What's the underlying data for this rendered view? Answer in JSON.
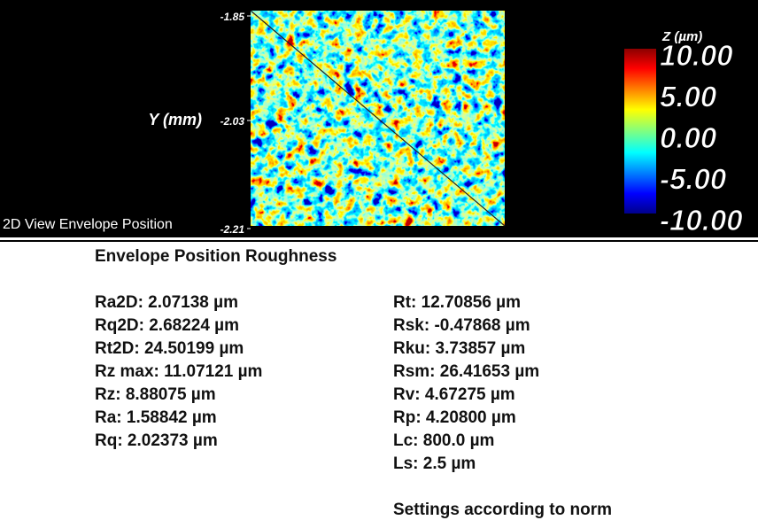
{
  "view": {
    "label": "2D View Envelope Position",
    "y_axis": {
      "label": "Y (mm)",
      "ticks": [
        "-1.85",
        "-2.03",
        "-2.21"
      ]
    },
    "colorbar": {
      "title": "Z (µm)",
      "ticks": [
        "10.00",
        "5.00",
        "0.00",
        "-5.00",
        "-10.00"
      ]
    }
  },
  "report": {
    "title": "Envelope Position Roughness",
    "left": [
      "Ra2D: 2.07138 µm",
      "Rq2D: 2.68224 µm",
      "Rt2D: 24.50199 µm",
      "Rz max: 11.07121 µm",
      "Rz: 8.88075 µm",
      "Ra: 1.58842 µm",
      "Rq: 2.02373 µm"
    ],
    "right": [
      "Rt: 12.70856 µm",
      "Rsk: -0.47868 µm",
      "Rku: 3.73857 µm",
      "Rsm: 26.41653 µm",
      "Rv: 4.67275 µm",
      "Rp: 4.20800 µm",
      "Lc: 800.0 µm",
      "Ls: 2.5 µm"
    ],
    "footer": "Settings according to norm"
  }
}
